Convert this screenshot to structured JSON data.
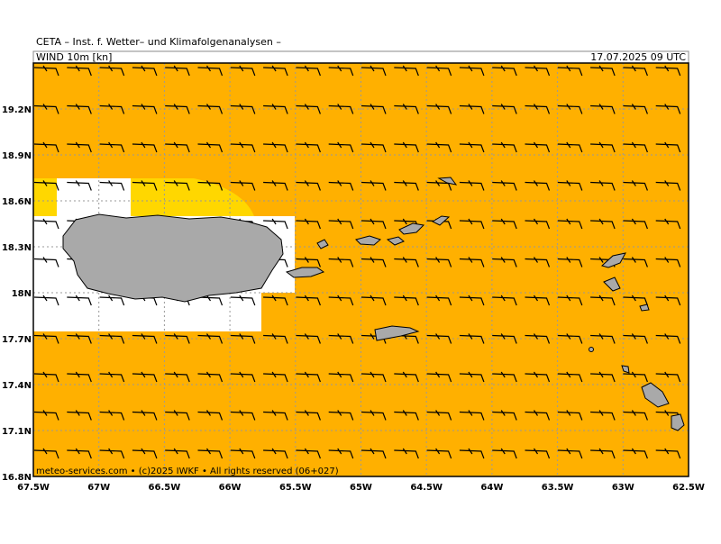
{
  "header": {
    "title": "CETA – Inst. f. Wetter– und Klimafolgenanalysen –",
    "parameter": "WIND 10m [kn]",
    "valid_time": "17.07.2025 09 UTC"
  },
  "footer": "meteo-services.com • (c)2025 IWKF • All rights reserved (06+027)",
  "map": {
    "xlim": [
      -67.5,
      -62.5
    ],
    "ylim": [
      16.8,
      19.5
    ],
    "xticks": [
      {
        "value": -67.5,
        "label": "67.5W"
      },
      {
        "value": -67,
        "label": "67W"
      },
      {
        "value": -66.5,
        "label": "66.5W"
      },
      {
        "value": -66,
        "label": "66W"
      },
      {
        "value": -65.5,
        "label": "65.5W"
      },
      {
        "value": -65,
        "label": "65W"
      },
      {
        "value": -64.5,
        "label": "64.5W"
      },
      {
        "value": -64,
        "label": "64W"
      },
      {
        "value": -63.5,
        "label": "63.5W"
      },
      {
        "value": -63,
        "label": "63W"
      },
      {
        "value": -62.5,
        "label": "62.5W"
      }
    ],
    "yticks": [
      {
        "value": 16.8,
        "label": "16.8N"
      },
      {
        "value": 17.1,
        "label": "17.1N"
      },
      {
        "value": 17.4,
        "label": "17.4N"
      },
      {
        "value": 17.7,
        "label": "17.7N"
      },
      {
        "value": 18,
        "label": "18N"
      },
      {
        "value": 18.3,
        "label": "18.3N"
      },
      {
        "value": 18.6,
        "label": "18.6N"
      },
      {
        "value": 18.9,
        "label": "18.9N"
      },
      {
        "value": 19.2,
        "label": "19.2N"
      }
    ]
  }
}
